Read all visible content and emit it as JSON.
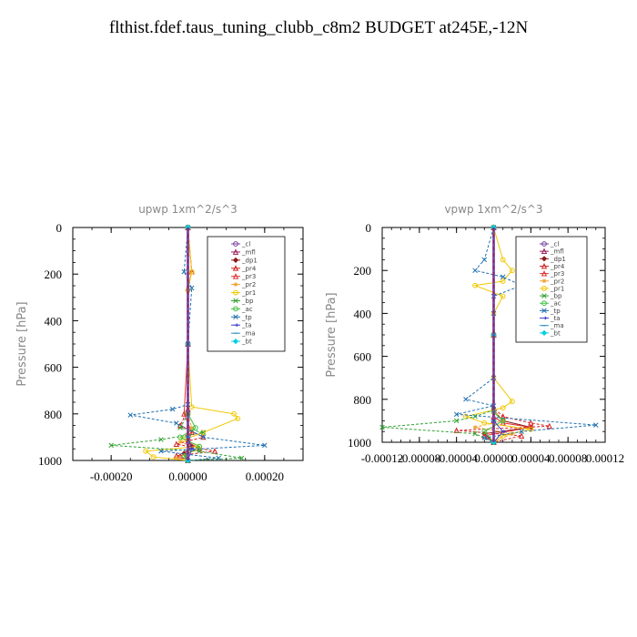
{
  "page_title": "flthist.fdef.taus_tuning_clubb_c8m2  BUDGET at245E,-12N",
  "chart_data": [
    {
      "type": "line",
      "title": "upwp   1xm^2/s^3",
      "ylabel": "Pressure [hPa]",
      "xlabel": "",
      "xlim": [
        -0.0003,
        0.0003
      ],
      "ylim": [
        1000,
        0
      ],
      "y_inverted": true,
      "x_ticks": [
        -0.0002,
        0.0,
        0.0002
      ],
      "x_tick_labels": [
        "-0.00020",
        "0.00000",
        "0.00020"
      ],
      "y_ticks": [
        0,
        200,
        400,
        600,
        800,
        1000
      ],
      "y_tick_labels": [
        "0",
        "200",
        "400",
        "600",
        "800",
        "1000"
      ],
      "legend_position": "top-right",
      "series": [
        {
          "name": "_cl",
          "color": "#7b3fa0",
          "marker": "circle",
          "x": [
            0,
            0,
            0,
            0
          ],
          "y": [
            0,
            500,
            900,
            1000
          ]
        },
        {
          "name": "_mfl",
          "color": "#9b1d5a",
          "marker": "triangle",
          "x": [
            0,
            0,
            0,
            0
          ],
          "y": [
            0,
            500,
            900,
            1000
          ]
        },
        {
          "name": "_dp1",
          "color": "#8b1a1a",
          "marker": "diamond",
          "x": [
            0,
            0,
            0,
            0,
            1e-05,
            -1e-05,
            0
          ],
          "y": [
            0,
            500,
            800,
            900,
            940,
            970,
            1000
          ]
        },
        {
          "name": "_pr4",
          "color": "#d42020",
          "marker": "triangle",
          "x": [
            0,
            0,
            0,
            -2e-05,
            4e-05,
            -3e-05,
            7e-05,
            -3e-05,
            0
          ],
          "y": [
            0,
            500,
            780,
            850,
            900,
            930,
            960,
            980,
            1000
          ]
        },
        {
          "name": "_pr3",
          "color": "#e03030",
          "marker": "triangle",
          "x": [
            0,
            1e-05,
            0,
            0,
            -1e-05,
            1e-05,
            0,
            3e-05,
            -2e-05,
            0
          ],
          "y": [
            0,
            190,
            260,
            500,
            800,
            880,
            920,
            950,
            980,
            1000
          ]
        },
        {
          "name": "_pr2",
          "color": "#f0a030",
          "marker": "star",
          "x": [
            0,
            0,
            0,
            1e-05,
            -2e-05,
            3e-05,
            -3e-05,
            0
          ],
          "y": [
            0,
            500,
            800,
            860,
            920,
            950,
            990,
            1000
          ]
        },
        {
          "name": "_pr1",
          "color": "#f0c800",
          "marker": "circle",
          "x": [
            0,
            1e-05,
            0,
            0,
            1e-05,
            0.00012,
            0.00013,
            4e-05,
            -1e-05,
            3e-05,
            -0.00011,
            -9e-05,
            0
          ],
          "y": [
            0,
            190,
            270,
            500,
            770,
            800,
            820,
            880,
            910,
            940,
            960,
            985,
            1000
          ]
        },
        {
          "name": "_bp",
          "color": "#30a030",
          "marker": "x",
          "x": [
            0,
            0,
            0,
            -2e-05,
            4e-05,
            -7e-05,
            -0.0002,
            3e-05,
            0.00014,
            0
          ],
          "y": [
            0,
            500,
            800,
            860,
            880,
            910,
            935,
            960,
            990,
            1000
          ]
        },
        {
          "name": "_ac",
          "color": "#40c040",
          "marker": "circle",
          "x": [
            0,
            0,
            0,
            2e-05,
            -2e-05,
            3e-05,
            -1e-05,
            0
          ],
          "y": [
            0,
            500,
            800,
            860,
            900,
            940,
            980,
            1000
          ]
        },
        {
          "name": "_tp",
          "color": "#2070b0",
          "marker": "x",
          "x": [
            0,
            -1e-05,
            1e-05,
            0,
            0,
            -4e-05,
            -0.00015,
            -3e-05,
            4e-05,
            0.0002,
            -7e-05,
            8e-05,
            0
          ],
          "y": [
            0,
            190,
            260,
            500,
            760,
            780,
            805,
            840,
            900,
            935,
            960,
            990,
            1000
          ]
        },
        {
          "name": "_ta",
          "color": "#4040d0",
          "marker": "arrow",
          "x": [
            0,
            0,
            0,
            1e-05,
            0
          ],
          "y": [
            0,
            500,
            900,
            950,
            1000
          ]
        },
        {
          "name": "_ma",
          "color": "#3090c0",
          "marker": "dash",
          "x": [
            0,
            0,
            0,
            0
          ],
          "y": [
            0,
            500,
            900,
            1000
          ]
        },
        {
          "name": "_bt",
          "color": "#00d0e0",
          "marker": "diamond",
          "x": [
            0,
            0,
            0,
            0
          ],
          "y": [
            0,
            500,
            900,
            1000
          ]
        }
      ]
    },
    {
      "type": "line",
      "title": "vpwp   1xm^2/s^3",
      "ylabel": "Pressure [hPa]",
      "xlabel": "",
      "xlim": [
        -0.00012,
        0.00012
      ],
      "ylim": [
        1000,
        0
      ],
      "y_inverted": true,
      "x_ticks": [
        -0.00012,
        -8e-05,
        -4e-05,
        0.0,
        4e-05,
        8e-05,
        0.00012
      ],
      "x_tick_labels": [
        "-0.00012",
        "-0.00008",
        "-0.00004",
        "0.00000",
        "0.00004",
        "0.00008",
        "0.00012"
      ],
      "y_ticks": [
        0,
        200,
        400,
        600,
        800,
        1000
      ],
      "y_tick_labels": [
        "0",
        "200",
        "400",
        "600",
        "800",
        "1000"
      ],
      "legend_position": "top-right",
      "series": [
        {
          "name": "_cl",
          "color": "#7b3fa0",
          "marker": "circle",
          "x": [
            0,
            0,
            0,
            0
          ],
          "y": [
            0,
            500,
            900,
            1000
          ]
        },
        {
          "name": "_mfl",
          "color": "#9b1d5a",
          "marker": "triangle",
          "x": [
            0,
            0,
            0,
            0
          ],
          "y": [
            0,
            500,
            900,
            1000
          ]
        },
        {
          "name": "_dp1",
          "color": "#8b1a1a",
          "marker": "diamond",
          "x": [
            0,
            0,
            0,
            1e-05,
            4e-05,
            -1e-05,
            0
          ],
          "y": [
            0,
            500,
            850,
            900,
            930,
            960,
            1000
          ]
        },
        {
          "name": "_pr4",
          "color": "#d42020",
          "marker": "triangle",
          "x": [
            0,
            0,
            0,
            1e-05,
            4e-05,
            6e-05,
            -4e-05,
            3e-05,
            0
          ],
          "y": [
            0,
            500,
            840,
            880,
            910,
            925,
            945,
            970,
            1000
          ]
        },
        {
          "name": "_pr3",
          "color": "#e03030",
          "marker": "triangle",
          "x": [
            0,
            0,
            0,
            1e-05,
            4e-05,
            -1e-05,
            0
          ],
          "y": [
            0,
            500,
            880,
            910,
            930,
            970,
            1000
          ]
        },
        {
          "name": "_pr2",
          "color": "#f0a030",
          "marker": "star",
          "x": [
            0,
            0,
            0,
            1e-05,
            -2e-05,
            2e-05,
            0
          ],
          "y": [
            0,
            500,
            850,
            900,
            930,
            960,
            1000
          ]
        },
        {
          "name": "_pr1",
          "color": "#f0c800",
          "marker": "circle",
          "x": [
            0,
            1e-05,
            2e-05,
            1e-05,
            -2e-05,
            1e-05,
            0,
            0,
            2e-05,
            1e-05,
            -3e-05,
            -1e-05,
            4e-05,
            1e-05,
            0
          ],
          "y": [
            0,
            150,
            200,
            250,
            270,
            320,
            400,
            700,
            810,
            840,
            880,
            910,
            940,
            970,
            1000
          ]
        },
        {
          "name": "_bp",
          "color": "#30a030",
          "marker": "x",
          "x": [
            0,
            0,
            0,
            -2e-05,
            -4e-05,
            -0.00012,
            -2e-05,
            0
          ],
          "y": [
            0,
            500,
            850,
            880,
            900,
            930,
            960,
            1000
          ]
        },
        {
          "name": "_ac",
          "color": "#40c040",
          "marker": "circle",
          "x": [
            0,
            0,
            0,
            1e-05,
            -1e-05,
            0
          ],
          "y": [
            0,
            500,
            860,
            900,
            950,
            1000
          ]
        },
        {
          "name": "_tp",
          "color": "#2070b0",
          "marker": "x",
          "x": [
            0,
            -1e-05,
            -2e-05,
            1e-05,
            3e-05,
            0,
            0,
            0,
            -3e-05,
            0,
            -4e-05,
            0.00011,
            3e-05,
            -1e-05,
            0
          ],
          "y": [
            0,
            150,
            200,
            230,
            270,
            320,
            400,
            700,
            800,
            830,
            870,
            920,
            950,
            980,
            1000
          ]
        },
        {
          "name": "_ta",
          "color": "#4040d0",
          "marker": "arrow",
          "x": [
            0,
            0,
            0,
            1e-05,
            0
          ],
          "y": [
            0,
            500,
            900,
            950,
            1000
          ]
        },
        {
          "name": "_ma",
          "color": "#3090c0",
          "marker": "dash",
          "x": [
            0,
            0,
            0,
            0
          ],
          "y": [
            0,
            500,
            900,
            1000
          ]
        },
        {
          "name": "_bt",
          "color": "#00d0e0",
          "marker": "diamond",
          "x": [
            0,
            0,
            0,
            0
          ],
          "y": [
            0,
            500,
            900,
            1000
          ]
        }
      ]
    }
  ]
}
